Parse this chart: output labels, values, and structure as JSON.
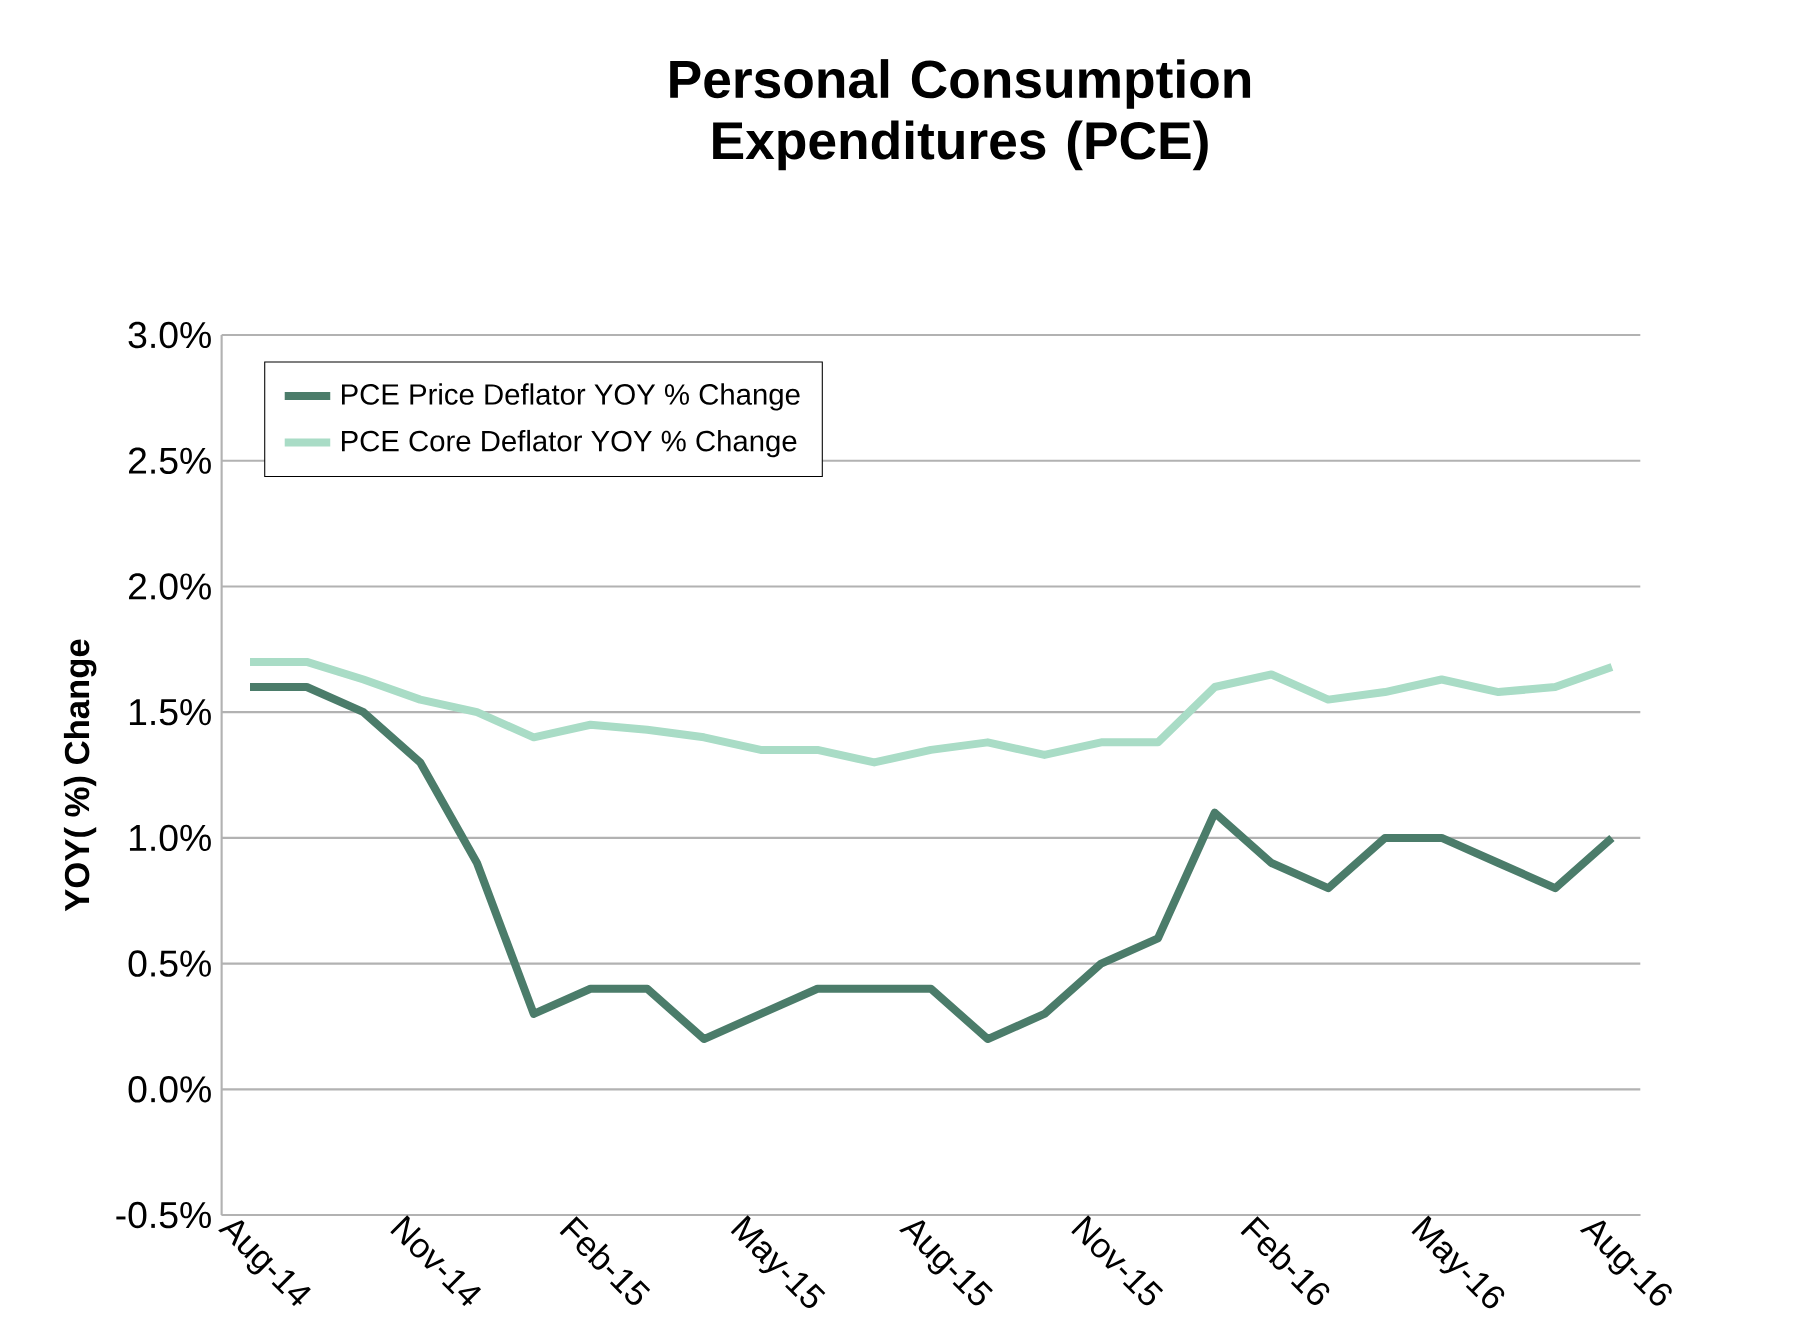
{
  "chart_data": {
    "type": "line",
    "title": "Personal Consumption Expenditures (PCE)",
    "ylabel": "YOY( %) Change",
    "categories": [
      "Aug-14",
      null,
      null,
      "Nov-14",
      null,
      null,
      "Feb-15",
      null,
      null,
      "May-15",
      null,
      null,
      "Aug-15",
      null,
      null,
      "Nov-15",
      null,
      null,
      "Feb-16",
      null,
      null,
      "May-16",
      null,
      null,
      "Aug-16"
    ],
    "series": [
      {
        "name": "PCE Price Deflator YOY % Change",
        "color": "#4b7c6a",
        "values": [
          1.6,
          1.6,
          1.5,
          1.3,
          0.9,
          0.3,
          0.4,
          0.4,
          0.2,
          0.3,
          0.4,
          0.4,
          0.4,
          0.2,
          0.3,
          0.5,
          0.6,
          1.1,
          0.9,
          0.8,
          1.0,
          1.0,
          0.9,
          0.8,
          1.0
        ]
      },
      {
        "name": "PCE Core Deflator YOY % Change",
        "color": "#a9dcc6",
        "values": [
          1.7,
          1.7,
          1.63,
          1.55,
          1.5,
          1.4,
          1.45,
          1.43,
          1.4,
          1.35,
          1.35,
          1.3,
          1.35,
          1.38,
          1.33,
          1.38,
          1.38,
          1.6,
          1.65,
          1.55,
          1.58,
          1.63,
          1.58,
          1.6,
          1.68
        ]
      }
    ],
    "ylim": [
      -0.5,
      3.0
    ],
    "yticks": [
      {
        "value": -0.5,
        "label": "-0.5%"
      },
      {
        "value": 0,
        "label": "0.0%"
      },
      {
        "value": 0.5,
        "label": "0.5%"
      },
      {
        "value": 1.0,
        "label": "1.0%"
      },
      {
        "value": 1.5,
        "label": "1.5%"
      },
      {
        "value": 2.0,
        "label": "2.0%"
      },
      {
        "value": 2.5,
        "label": "2.5%"
      },
      {
        "value": 3.0,
        "label": "3.0%"
      }
    ],
    "grid": "y",
    "legend": "top left",
    "marker": "none",
    "line_style": "solid"
  }
}
